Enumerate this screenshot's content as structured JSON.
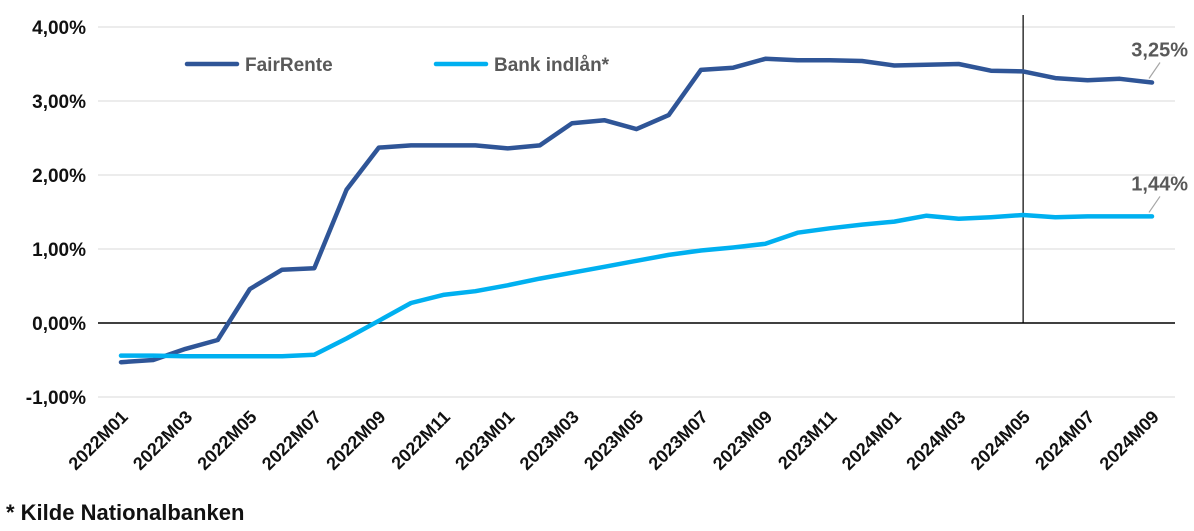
{
  "chart_data": {
    "type": "line",
    "x": [
      "2022M01",
      "2022M02",
      "2022M03",
      "2022M04",
      "2022M05",
      "2022M06",
      "2022M07",
      "2022M08",
      "2022M09",
      "2022M10",
      "2022M11",
      "2022M12",
      "2023M01",
      "2023M02",
      "2023M03",
      "2023M04",
      "2023M05",
      "2023M06",
      "2023M07",
      "2023M08",
      "2023M09",
      "2023M10",
      "2023M11",
      "2023M12",
      "2024M01",
      "2024M02",
      "2024M03",
      "2024M04",
      "2024M05",
      "2024M06",
      "2024M07",
      "2024M08",
      "2024M09"
    ],
    "x_tick_labels": [
      "2022M01",
      "2022M03",
      "2022M05",
      "2022M07",
      "2022M09",
      "2022M11",
      "2023M01",
      "2023M03",
      "2023M05",
      "2023M07",
      "2023M09",
      "2023M11",
      "2024M01",
      "2024M03",
      "2024M05",
      "2024M07",
      "2024M09"
    ],
    "y_tick_labels": [
      "4,00%",
      "3,00%",
      "2,00%",
      "1,00%",
      "0,00%",
      "-1,00%"
    ],
    "y_ticks": [
      4,
      3,
      2,
      1,
      0,
      -1
    ],
    "ylim": [
      -1,
      4
    ],
    "grid": true,
    "legend_position": "top-left",
    "series": [
      {
        "name": "FairRente",
        "color": "#2f5597",
        "values": [
          -0.53,
          -0.5,
          -0.35,
          -0.23,
          0.46,
          0.72,
          0.74,
          1.8,
          2.37,
          2.4,
          2.4,
          2.4,
          2.36,
          2.4,
          2.7,
          2.74,
          2.62,
          2.81,
          3.42,
          3.45,
          3.57,
          3.55,
          3.55,
          3.54,
          3.48,
          3.49,
          3.5,
          3.41,
          3.4,
          3.31,
          3.28,
          3.3,
          3.25
        ],
        "end_label": "3,25%"
      },
      {
        "name": "Bank indlån*",
        "color": "#00b0f0",
        "values": [
          -0.44,
          -0.44,
          -0.45,
          -0.45,
          -0.45,
          -0.45,
          -0.43,
          -0.21,
          0.03,
          0.27,
          0.38,
          0.43,
          0.51,
          0.6,
          0.68,
          0.76,
          0.84,
          0.92,
          0.98,
          1.02,
          1.07,
          1.22,
          1.28,
          1.33,
          1.37,
          1.45,
          1.41,
          1.43,
          1.46,
          1.43,
          1.44,
          1.44,
          1.44
        ],
        "end_label": "1,44%"
      }
    ],
    "vertical_marker_at": "2024M05"
  },
  "footnote": "* Kilde Nationalbanken"
}
